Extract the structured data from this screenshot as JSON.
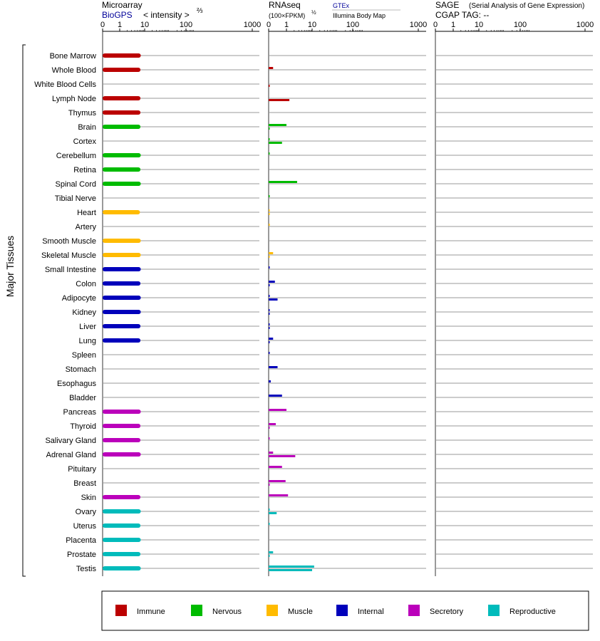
{
  "panels": {
    "microarray": {
      "title": "Microarray",
      "source": "BioGPS",
      "metric": "< intensity >",
      "metric_exp": "⅔",
      "ticks": [
        "0",
        "1",
        "10",
        "100",
        "1000"
      ]
    },
    "rnaseq": {
      "title": "RNAseq",
      "metric": "(100×FPKM)",
      "metric_exp": "½",
      "source1": "GTEx",
      "source2": "Illumina Body Map",
      "ticks": [
        "0",
        "1",
        "10",
        "100",
        "1000"
      ]
    },
    "sage": {
      "title": "SAGE",
      "subtitle": "(Serial Analysis of Gene Expression)",
      "line2": "CGAP  TAG:  --",
      "ticks": [
        "0",
        "1",
        "10",
        "100",
        "1000"
      ]
    }
  },
  "side_label": "Major Tissues",
  "colors": {
    "Immune": "#bb0000",
    "Nervous": "#00bb00",
    "Muscle": "#ffbb00",
    "Internal": "#0000bb",
    "Secretory": "#bb00bb",
    "Reproductive": "#00bbbb"
  },
  "legend": [
    "Immune",
    "Nervous",
    "Muscle",
    "Internal",
    "Secretory",
    "Reproductive"
  ],
  "chart_data": {
    "type": "bar",
    "scale": "axis 0 | 1 | 10 | 100 | 1000 (linear 0-1, log above)",
    "tissues": [
      {
        "name": "Bone Marrow",
        "group": "Immune",
        "microarray": 7.0,
        "gtex": null,
        "ibm": null
      },
      {
        "name": "Whole Blood",
        "group": "Immune",
        "microarray": 6.8,
        "gtex": 0.25,
        "ibm": null
      },
      {
        "name": "White Blood Cells",
        "group": "Immune",
        "microarray": null,
        "gtex": null,
        "ibm": 0.05
      },
      {
        "name": "Lymph Node",
        "group": "Immune",
        "microarray": 6.8,
        "gtex": null,
        "ibm": 1.3
      },
      {
        "name": "Thymus",
        "group": "Immune",
        "microarray": 6.8,
        "gtex": null,
        "ibm": null
      },
      {
        "name": "Brain",
        "group": "Nervous",
        "microarray": 6.8,
        "gtex": 1.0,
        "ibm": 0.05
      },
      {
        "name": "Cortex",
        "group": "Nervous",
        "microarray": null,
        "gtex": 0.05,
        "ibm": 0.75
      },
      {
        "name": "Cerebellum",
        "group": "Nervous",
        "microarray": 7.0,
        "gtex": 0.05,
        "ibm": null
      },
      {
        "name": "Retina",
        "group": "Nervous",
        "microarray": 6.8,
        "gtex": null,
        "ibm": null
      },
      {
        "name": "Spinal Cord",
        "group": "Nervous",
        "microarray": 7.0,
        "gtex": 2.6,
        "ibm": null
      },
      {
        "name": "Tibial Nerve",
        "group": "Nervous",
        "microarray": null,
        "gtex": 0.05,
        "ibm": null
      },
      {
        "name": "Heart",
        "group": "Muscle",
        "microarray": 6.5,
        "gtex": 0.05,
        "ibm": 0.03
      },
      {
        "name": "Artery",
        "group": "Muscle",
        "microarray": null,
        "gtex": 0.03,
        "ibm": null
      },
      {
        "name": "Smooth Muscle",
        "group": "Muscle",
        "microarray": 7.0,
        "gtex": null,
        "ibm": null
      },
      {
        "name": "Skeletal Muscle",
        "group": "Muscle",
        "microarray": 7.0,
        "gtex": 0.25,
        "ibm": 0.03
      },
      {
        "name": "Small Intestine",
        "group": "Internal",
        "microarray": 7.0,
        "gtex": 0.05,
        "ibm": null
      },
      {
        "name": "Colon",
        "group": "Internal",
        "microarray": 6.8,
        "gtex": 0.35,
        "ibm": 0.05
      },
      {
        "name": "Adipocyte",
        "group": "Internal",
        "microarray": 7.0,
        "gtex": 0.05,
        "ibm": 0.5
      },
      {
        "name": "Kidney",
        "group": "Internal",
        "microarray": 7.0,
        "gtex": 0.05,
        "ibm": 0.05
      },
      {
        "name": "Liver",
        "group": "Internal",
        "microarray": 6.8,
        "gtex": 0.05,
        "ibm": 0.05
      },
      {
        "name": "Lung",
        "group": "Internal",
        "microarray": 6.8,
        "gtex": 0.25,
        "ibm": 0.05
      },
      {
        "name": "Spleen",
        "group": "Internal",
        "microarray": null,
        "gtex": 0.05,
        "ibm": null
      },
      {
        "name": "Stomach",
        "group": "Internal",
        "microarray": null,
        "gtex": 0.5,
        "ibm": null
      },
      {
        "name": "Esophagus",
        "group": "Internal",
        "microarray": null,
        "gtex": 0.12,
        "ibm": null
      },
      {
        "name": "Bladder",
        "group": "Internal",
        "microarray": null,
        "gtex": 0.75,
        "ibm": null
      },
      {
        "name": "Pancreas",
        "group": "Secretory",
        "microarray": 7.0,
        "gtex": 1.0,
        "ibm": null
      },
      {
        "name": "Thyroid",
        "group": "Secretory",
        "microarray": 6.8,
        "gtex": 0.4,
        "ibm": 0.05
      },
      {
        "name": "Salivary Gland",
        "group": "Secretory",
        "microarray": 6.8,
        "gtex": 0.05,
        "ibm": null
      },
      {
        "name": "Adrenal Gland",
        "group": "Secretory",
        "microarray": 7.0,
        "gtex": 0.25,
        "ibm": 2.2
      },
      {
        "name": "Pituitary",
        "group": "Secretory",
        "microarray": null,
        "gtex": 0.75,
        "ibm": null
      },
      {
        "name": "Breast",
        "group": "Secretory",
        "microarray": null,
        "gtex": 0.95,
        "ibm": 0.05
      },
      {
        "name": "Skin",
        "group": "Secretory",
        "microarray": 6.8,
        "gtex": 1.15,
        "ibm": null
      },
      {
        "name": "Ovary",
        "group": "Reproductive",
        "microarray": 7.0,
        "gtex": 0.05,
        "ibm": 0.45
      },
      {
        "name": "Uterus",
        "group": "Reproductive",
        "microarray": 6.8,
        "gtex": 0.05,
        "ibm": null
      },
      {
        "name": "Placenta",
        "group": "Reproductive",
        "microarray": 7.0,
        "gtex": null,
        "ibm": null
      },
      {
        "name": "Prostate",
        "group": "Reproductive",
        "microarray": 6.8,
        "gtex": 0.25,
        "ibm": 0.05
      },
      {
        "name": "Testis",
        "group": "Reproductive",
        "microarray": 7.0,
        "gtex": 12.0,
        "ibm": 10.0
      }
    ]
  }
}
